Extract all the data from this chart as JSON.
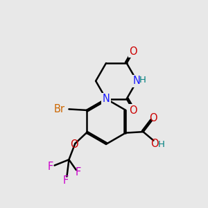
{
  "background_color": "#e8e8e8",
  "colors": {
    "N": "#1a1aff",
    "O": "#cc0000",
    "Br": "#cc6600",
    "F": "#cc00cc",
    "H": "#008080",
    "C": "#000000",
    "bond": "#000000"
  },
  "bond_width": 1.8,
  "font_size": 10.5,
  "fig_size": [
    3.0,
    3.0
  ],
  "dpi": 100
}
